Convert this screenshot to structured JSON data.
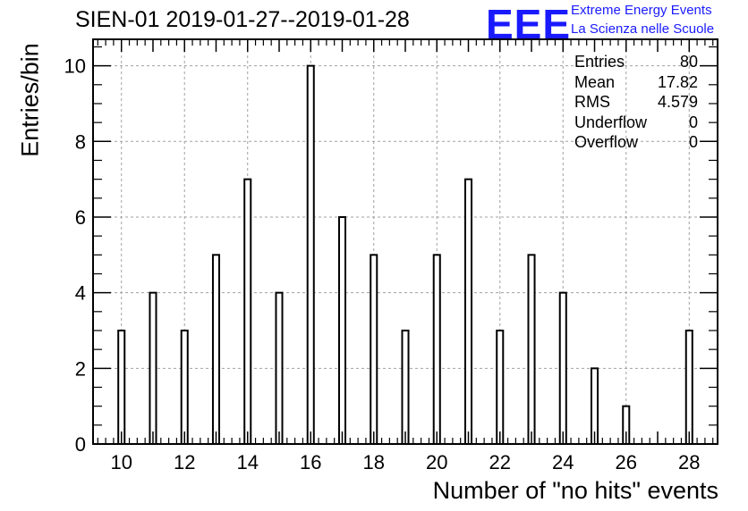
{
  "chart_data": {
    "type": "bar",
    "title": "SIEN-01 2019-01-27--2019-01-28",
    "xlabel": "Number of \"no hits\" events",
    "ylabel": "Entries/bin",
    "x": [
      10,
      11,
      12,
      13,
      14,
      15,
      16,
      17,
      18,
      19,
      20,
      21,
      22,
      23,
      24,
      25,
      26,
      27,
      28
    ],
    "values": [
      3,
      4,
      3,
      5,
      7,
      4,
      10,
      6,
      5,
      3,
      5,
      7,
      3,
      5,
      4,
      2,
      1,
      0,
      3
    ],
    "xlim": [
      9.1,
      28.9
    ],
    "ylim": [
      0,
      10.7
    ],
    "x_ticks": [
      10,
      12,
      14,
      16,
      18,
      20,
      22,
      24,
      26,
      28
    ],
    "x_tick_labels": [
      "10",
      "12",
      "14",
      "16",
      "18",
      "20",
      "22",
      "24",
      "26",
      "28"
    ],
    "y_ticks": [
      0,
      2,
      4,
      6,
      8,
      10
    ],
    "y_tick_labels": [
      "0",
      "2",
      "4",
      "6",
      "8",
      "10"
    ],
    "grid": true,
    "stats_box": {
      "placement": "top-right",
      "rows": [
        {
          "label": "Entries",
          "value": "80"
        },
        {
          "label": "Mean",
          "value": "17.82"
        },
        {
          "label": "RMS",
          "value": "4.579"
        },
        {
          "label": "Underflow",
          "value": "0"
        },
        {
          "label": "Overflow",
          "value": "0"
        }
      ]
    }
  },
  "logo": {
    "letters": "EEE",
    "line1": "Extreme Energy Events",
    "line2": "La Scienza nelle Scuole"
  },
  "colors": {
    "logo": "#1a1aff",
    "axis": "#000000",
    "grid": "#a0a0a0",
    "bar_fill": "#ffffff",
    "bar_stroke": "#000000"
  }
}
